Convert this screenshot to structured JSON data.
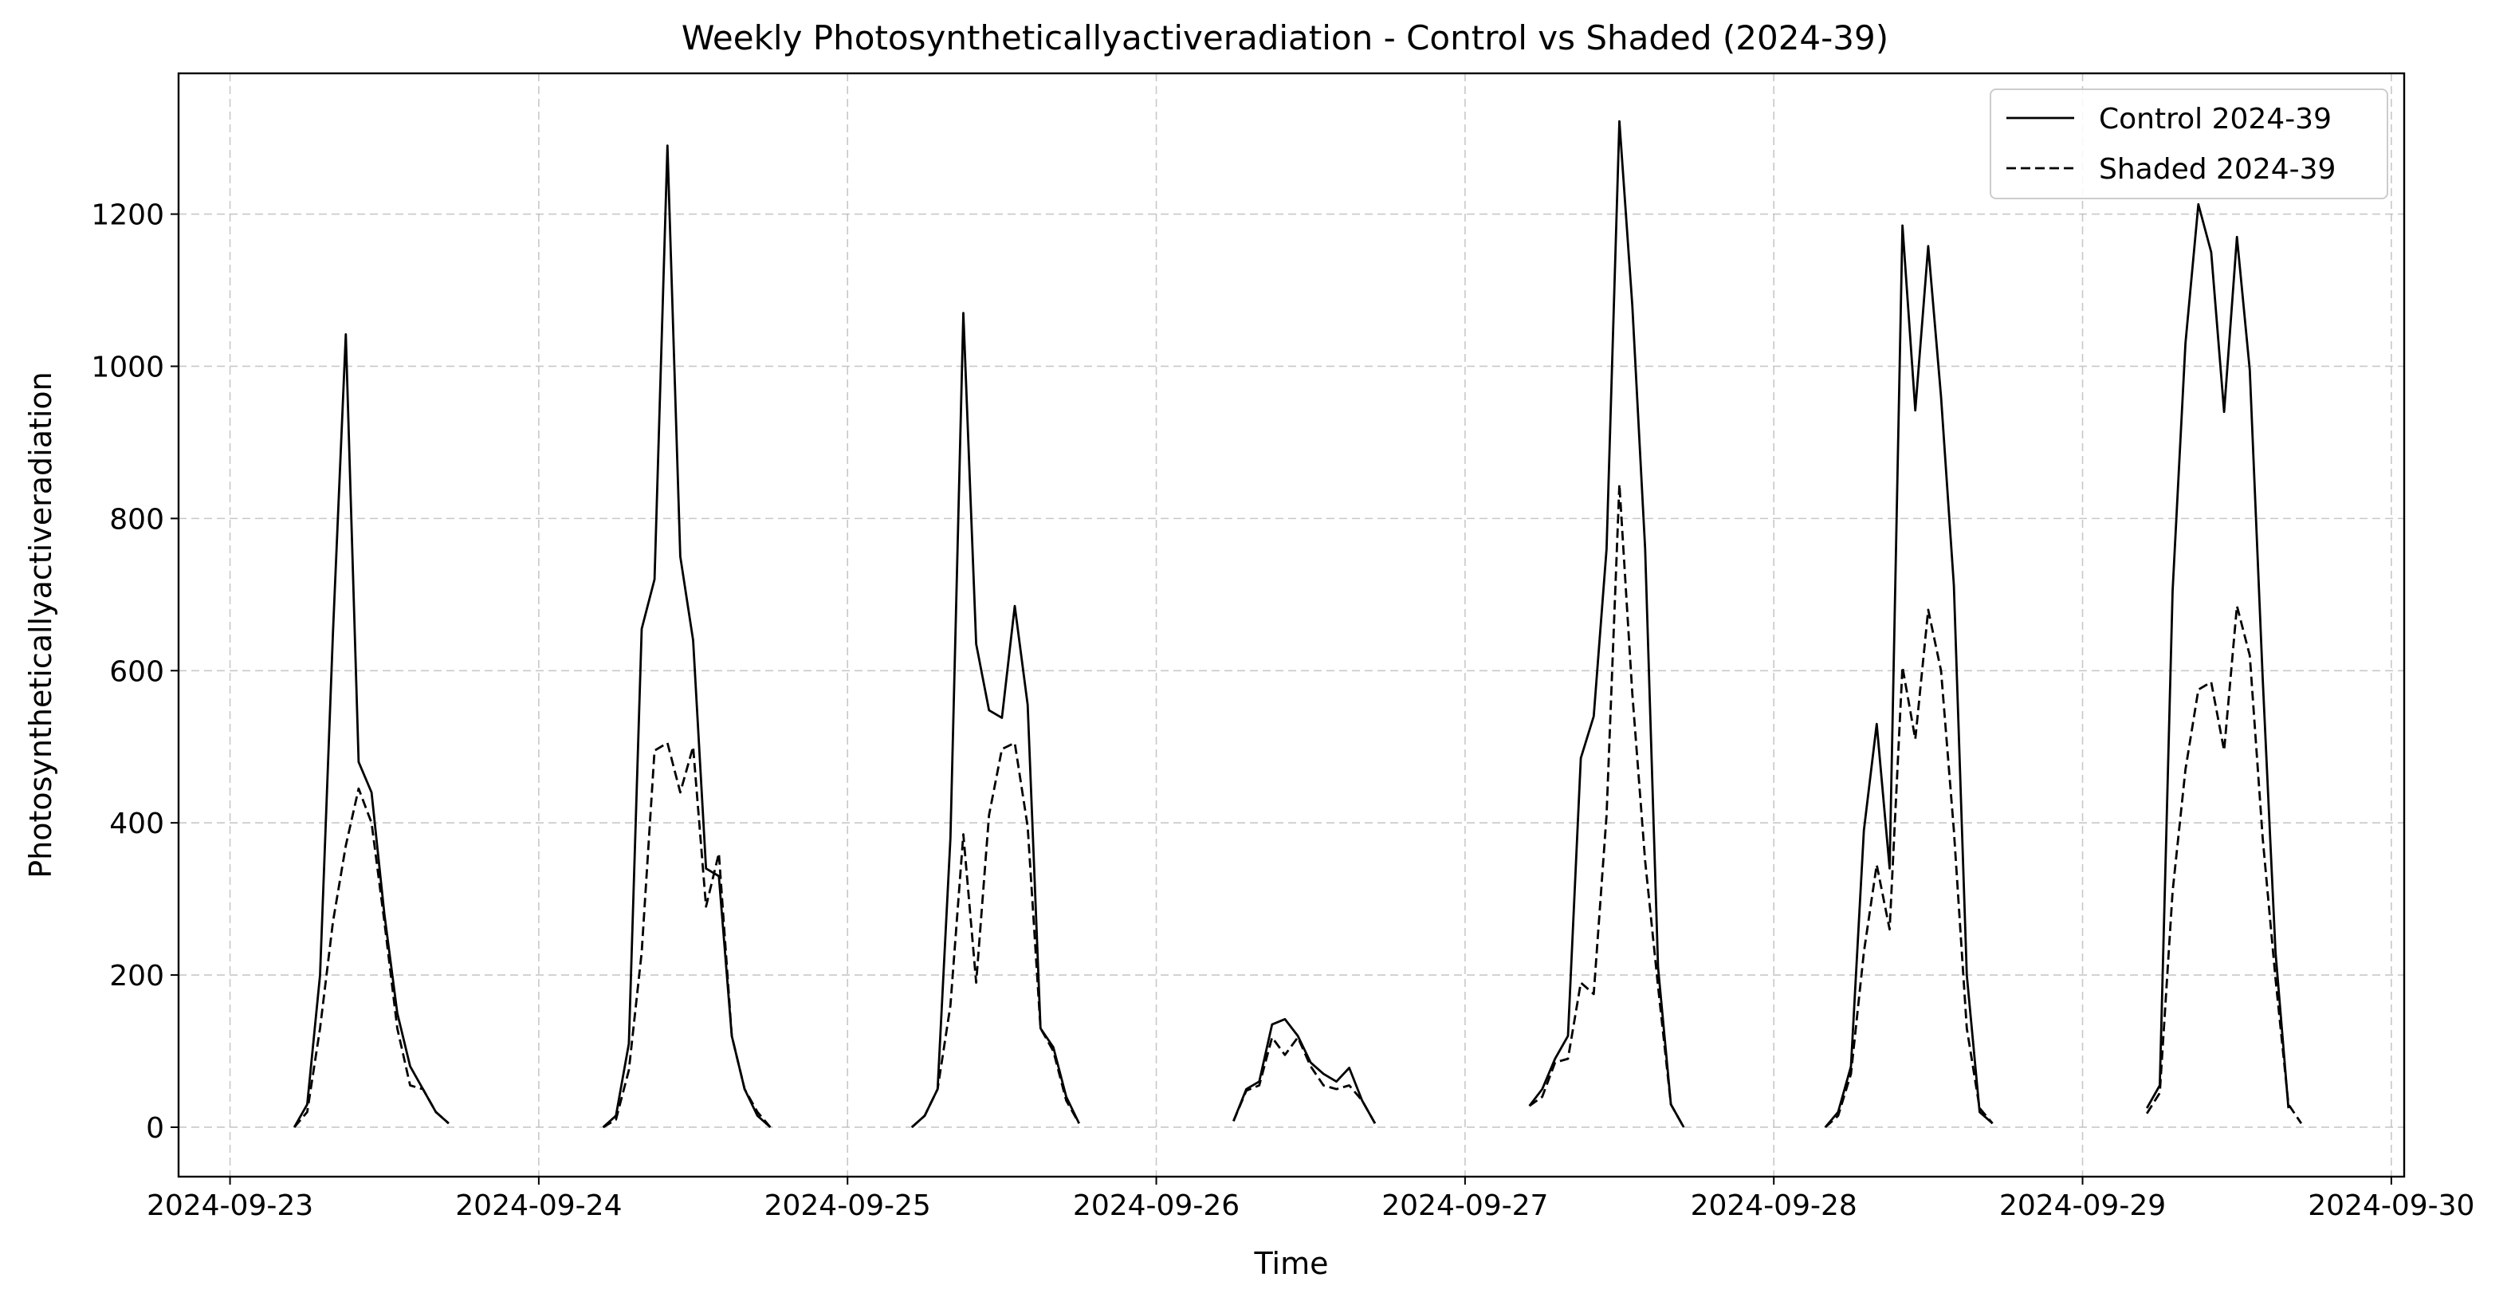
{
  "chart_data": {
    "type": "line",
    "title": "Weekly Photosyntheticallyactiveradiation - Control vs Shaded (2024-39)",
    "xlabel": "Time",
    "ylabel": "Photosyntheticallyactiveradiation",
    "x_ticks": [
      "2024-09-23",
      "2024-09-24",
      "2024-09-25",
      "2024-09-26",
      "2024-09-27",
      "2024-09-28",
      "2024-09-29",
      "2024-09-30"
    ],
    "y_ticks": [
      "0",
      "200",
      "400",
      "600",
      "800",
      "1000",
      "1200"
    ],
    "xlim": [
      "2024-09-22 20:00",
      "2024-09-30 01:00"
    ],
    "ylim": [
      -65,
      1385
    ],
    "grid": true,
    "legend_position": "top-right",
    "series": [
      {
        "name": "Control 2024-39",
        "style": "solid",
        "color": "#000000",
        "points": [
          [
            "2024-09-23 05:00",
            0
          ],
          [
            "2024-09-23 06:00",
            30
          ],
          [
            "2024-09-23 07:00",
            200
          ],
          [
            "2024-09-23 08:00",
            650
          ],
          [
            "2024-09-23 09:00",
            1042
          ],
          [
            "2024-09-23 10:00",
            480
          ],
          [
            "2024-09-23 11:00",
            440
          ],
          [
            "2024-09-23 12:00",
            280
          ],
          [
            "2024-09-23 13:00",
            150
          ],
          [
            "2024-09-23 14:00",
            80
          ],
          [
            "2024-09-23 15:00",
            50
          ],
          [
            "2024-09-23 16:00",
            20
          ],
          [
            "2024-09-23 17:00",
            5
          ],
          [
            "2024-09-24 05:00",
            0
          ],
          [
            "2024-09-24 06:00",
            15
          ],
          [
            "2024-09-24 07:00",
            110
          ],
          [
            "2024-09-24 08:00",
            655
          ],
          [
            "2024-09-24 09:00",
            720
          ],
          [
            "2024-09-24 10:00",
            1290
          ],
          [
            "2024-09-24 11:00",
            750
          ],
          [
            "2024-09-24 12:00",
            640
          ],
          [
            "2024-09-24 13:00",
            340
          ],
          [
            "2024-09-24 14:00",
            330
          ],
          [
            "2024-09-24 15:00",
            120
          ],
          [
            "2024-09-24 16:00",
            50
          ],
          [
            "2024-09-24 17:00",
            15
          ],
          [
            "2024-09-24 18:00",
            0
          ],
          [
            "2024-09-25 05:00",
            0
          ],
          [
            "2024-09-25 06:00",
            15
          ],
          [
            "2024-09-25 07:00",
            50
          ],
          [
            "2024-09-25 08:00",
            380
          ],
          [
            "2024-09-25 09:00",
            1070
          ],
          [
            "2024-09-25 10:00",
            635
          ],
          [
            "2024-09-25 11:00",
            548
          ],
          [
            "2024-09-25 12:00",
            538
          ],
          [
            "2024-09-25 13:00",
            685
          ],
          [
            "2024-09-25 14:00",
            555
          ],
          [
            "2024-09-25 15:00",
            130
          ],
          [
            "2024-09-25 16:00",
            105
          ],
          [
            "2024-09-25 17:00",
            40
          ],
          [
            "2024-09-25 18:00",
            5
          ],
          [
            "2024-09-26 06:00",
            8
          ],
          [
            "2024-09-26 07:00",
            50
          ],
          [
            "2024-09-26 08:00",
            60
          ],
          [
            "2024-09-26 09:00",
            135
          ],
          [
            "2024-09-26 10:00",
            142
          ],
          [
            "2024-09-26 11:00",
            120
          ],
          [
            "2024-09-26 12:00",
            85
          ],
          [
            "2024-09-26 13:00",
            70
          ],
          [
            "2024-09-26 14:00",
            60
          ],
          [
            "2024-09-26 15:00",
            78
          ],
          [
            "2024-09-26 16:00",
            35
          ],
          [
            "2024-09-26 17:00",
            5
          ],
          [
            "2024-09-27 05:00",
            28
          ],
          [
            "2024-09-27 06:00",
            50
          ],
          [
            "2024-09-27 07:00",
            90
          ],
          [
            "2024-09-27 08:00",
            120
          ],
          [
            "2024-09-27 09:00",
            485
          ],
          [
            "2024-09-27 10:00",
            540
          ],
          [
            "2024-09-27 11:00",
            760
          ],
          [
            "2024-09-27 12:00",
            1322
          ],
          [
            "2024-09-27 13:00",
            1080
          ],
          [
            "2024-09-27 14:00",
            760
          ],
          [
            "2024-09-27 15:00",
            210
          ],
          [
            "2024-09-27 16:00",
            30
          ],
          [
            "2024-09-27 17:00",
            0
          ],
          [
            "2024-09-28 04:00",
            0
          ],
          [
            "2024-09-28 05:00",
            20
          ],
          [
            "2024-09-28 06:00",
            80
          ],
          [
            "2024-09-28 07:00",
            390
          ],
          [
            "2024-09-28 08:00",
            530
          ],
          [
            "2024-09-28 09:00",
            340
          ],
          [
            "2024-09-28 10:00",
            1185
          ],
          [
            "2024-09-28 11:00",
            942
          ],
          [
            "2024-09-28 12:00",
            1158
          ],
          [
            "2024-09-28 13:00",
            960
          ],
          [
            "2024-09-28 14:00",
            712
          ],
          [
            "2024-09-28 15:00",
            200
          ],
          [
            "2024-09-28 16:00",
            20
          ],
          [
            "2024-09-28 17:00",
            5
          ],
          [
            "2024-09-29 05:00",
            25
          ],
          [
            "2024-09-29 06:00",
            55
          ],
          [
            "2024-09-29 07:00",
            705
          ],
          [
            "2024-09-29 08:00",
            1030
          ],
          [
            "2024-09-29 09:00",
            1213
          ],
          [
            "2024-09-29 10:00",
            1150
          ],
          [
            "2024-09-29 11:00",
            940
          ],
          [
            "2024-09-29 12:00",
            1170
          ],
          [
            "2024-09-29 13:00",
            995
          ],
          [
            "2024-09-29 14:00",
            590
          ],
          [
            "2024-09-29 15:00",
            230
          ],
          [
            "2024-09-29 16:00",
            25
          ]
        ]
      },
      {
        "name": "Shaded 2024-39",
        "style": "dashed",
        "color": "#000000",
        "points": [
          [
            "2024-09-23 05:00",
            0
          ],
          [
            "2024-09-23 06:00",
            20
          ],
          [
            "2024-09-23 07:00",
            130
          ],
          [
            "2024-09-23 08:00",
            270
          ],
          [
            "2024-09-23 09:00",
            370
          ],
          [
            "2024-09-23 10:00",
            445
          ],
          [
            "2024-09-23 11:00",
            400
          ],
          [
            "2024-09-23 12:00",
            270
          ],
          [
            "2024-09-23 13:00",
            130
          ],
          [
            "2024-09-23 14:00",
            55
          ],
          [
            "2024-09-23 15:00",
            50
          ],
          [
            "2024-09-23 16:00",
            20
          ],
          [
            "2024-09-23 17:00",
            5
          ],
          [
            "2024-09-24 05:00",
            0
          ],
          [
            "2024-09-24 06:00",
            10
          ],
          [
            "2024-09-24 07:00",
            75
          ],
          [
            "2024-09-24 08:00",
            230
          ],
          [
            "2024-09-24 09:00",
            495
          ],
          [
            "2024-09-24 10:00",
            505
          ],
          [
            "2024-09-24 11:00",
            440
          ],
          [
            "2024-09-24 12:00",
            500
          ],
          [
            "2024-09-24 13:00",
            290
          ],
          [
            "2024-09-24 14:00",
            360
          ],
          [
            "2024-09-24 15:00",
            120
          ],
          [
            "2024-09-24 16:00",
            50
          ],
          [
            "2024-09-24 17:00",
            20
          ],
          [
            "2024-09-24 18:00",
            0
          ],
          [
            "2024-09-25 05:00",
            0
          ],
          [
            "2024-09-25 06:00",
            15
          ],
          [
            "2024-09-25 07:00",
            50
          ],
          [
            "2024-09-25 08:00",
            160
          ],
          [
            "2024-09-25 09:00",
            385
          ],
          [
            "2024-09-25 10:00",
            190
          ],
          [
            "2024-09-25 11:00",
            410
          ],
          [
            "2024-09-25 12:00",
            497
          ],
          [
            "2024-09-25 13:00",
            505
          ],
          [
            "2024-09-25 14:00",
            395
          ],
          [
            "2024-09-25 15:00",
            130
          ],
          [
            "2024-09-25 16:00",
            100
          ],
          [
            "2024-09-25 17:00",
            35
          ],
          [
            "2024-09-25 18:00",
            5
          ],
          [
            "2024-09-26 06:00",
            8
          ],
          [
            "2024-09-26 07:00",
            48
          ],
          [
            "2024-09-26 08:00",
            55
          ],
          [
            "2024-09-26 09:00",
            118
          ],
          [
            "2024-09-26 10:00",
            95
          ],
          [
            "2024-09-26 11:00",
            118
          ],
          [
            "2024-09-26 12:00",
            80
          ],
          [
            "2024-09-26 13:00",
            55
          ],
          [
            "2024-09-26 14:00",
            50
          ],
          [
            "2024-09-26 15:00",
            55
          ],
          [
            "2024-09-26 16:00",
            35
          ],
          [
            "2024-09-26 17:00",
            5
          ],
          [
            "2024-09-27 05:00",
            28
          ],
          [
            "2024-09-27 06:00",
            40
          ],
          [
            "2024-09-27 07:00",
            85
          ],
          [
            "2024-09-27 08:00",
            90
          ],
          [
            "2024-09-27 09:00",
            190
          ],
          [
            "2024-09-27 10:00",
            175
          ],
          [
            "2024-09-27 11:00",
            410
          ],
          [
            "2024-09-27 12:00",
            845
          ],
          [
            "2024-09-27 13:00",
            570
          ],
          [
            "2024-09-27 14:00",
            350
          ],
          [
            "2024-09-27 15:00",
            185
          ],
          [
            "2024-09-27 16:00",
            30
          ],
          [
            "2024-09-27 17:00",
            0
          ],
          [
            "2024-09-28 04:00",
            0
          ],
          [
            "2024-09-28 05:00",
            15
          ],
          [
            "2024-09-28 06:00",
            70
          ],
          [
            "2024-09-28 07:00",
            230
          ],
          [
            "2024-09-28 08:00",
            345
          ],
          [
            "2024-09-28 09:00",
            260
          ],
          [
            "2024-09-28 10:00",
            605
          ],
          [
            "2024-09-28 11:00",
            510
          ],
          [
            "2024-09-28 12:00",
            680
          ],
          [
            "2024-09-28 13:00",
            600
          ],
          [
            "2024-09-28 14:00",
            390
          ],
          [
            "2024-09-28 15:00",
            130
          ],
          [
            "2024-09-28 16:00",
            25
          ],
          [
            "2024-09-28 17:00",
            5
          ],
          [
            "2024-09-29 05:00",
            18
          ],
          [
            "2024-09-29 06:00",
            45
          ],
          [
            "2024-09-29 07:00",
            310
          ],
          [
            "2024-09-29 08:00",
            470
          ],
          [
            "2024-09-29 09:00",
            575
          ],
          [
            "2024-09-29 10:00",
            585
          ],
          [
            "2024-09-29 11:00",
            495
          ],
          [
            "2024-09-29 12:00",
            685
          ],
          [
            "2024-09-29 13:00",
            620
          ],
          [
            "2024-09-29 14:00",
            380
          ],
          [
            "2024-09-29 15:00",
            195
          ],
          [
            "2024-09-29 16:00",
            30
          ],
          [
            "2024-09-29 17:00",
            5
          ]
        ]
      }
    ]
  }
}
